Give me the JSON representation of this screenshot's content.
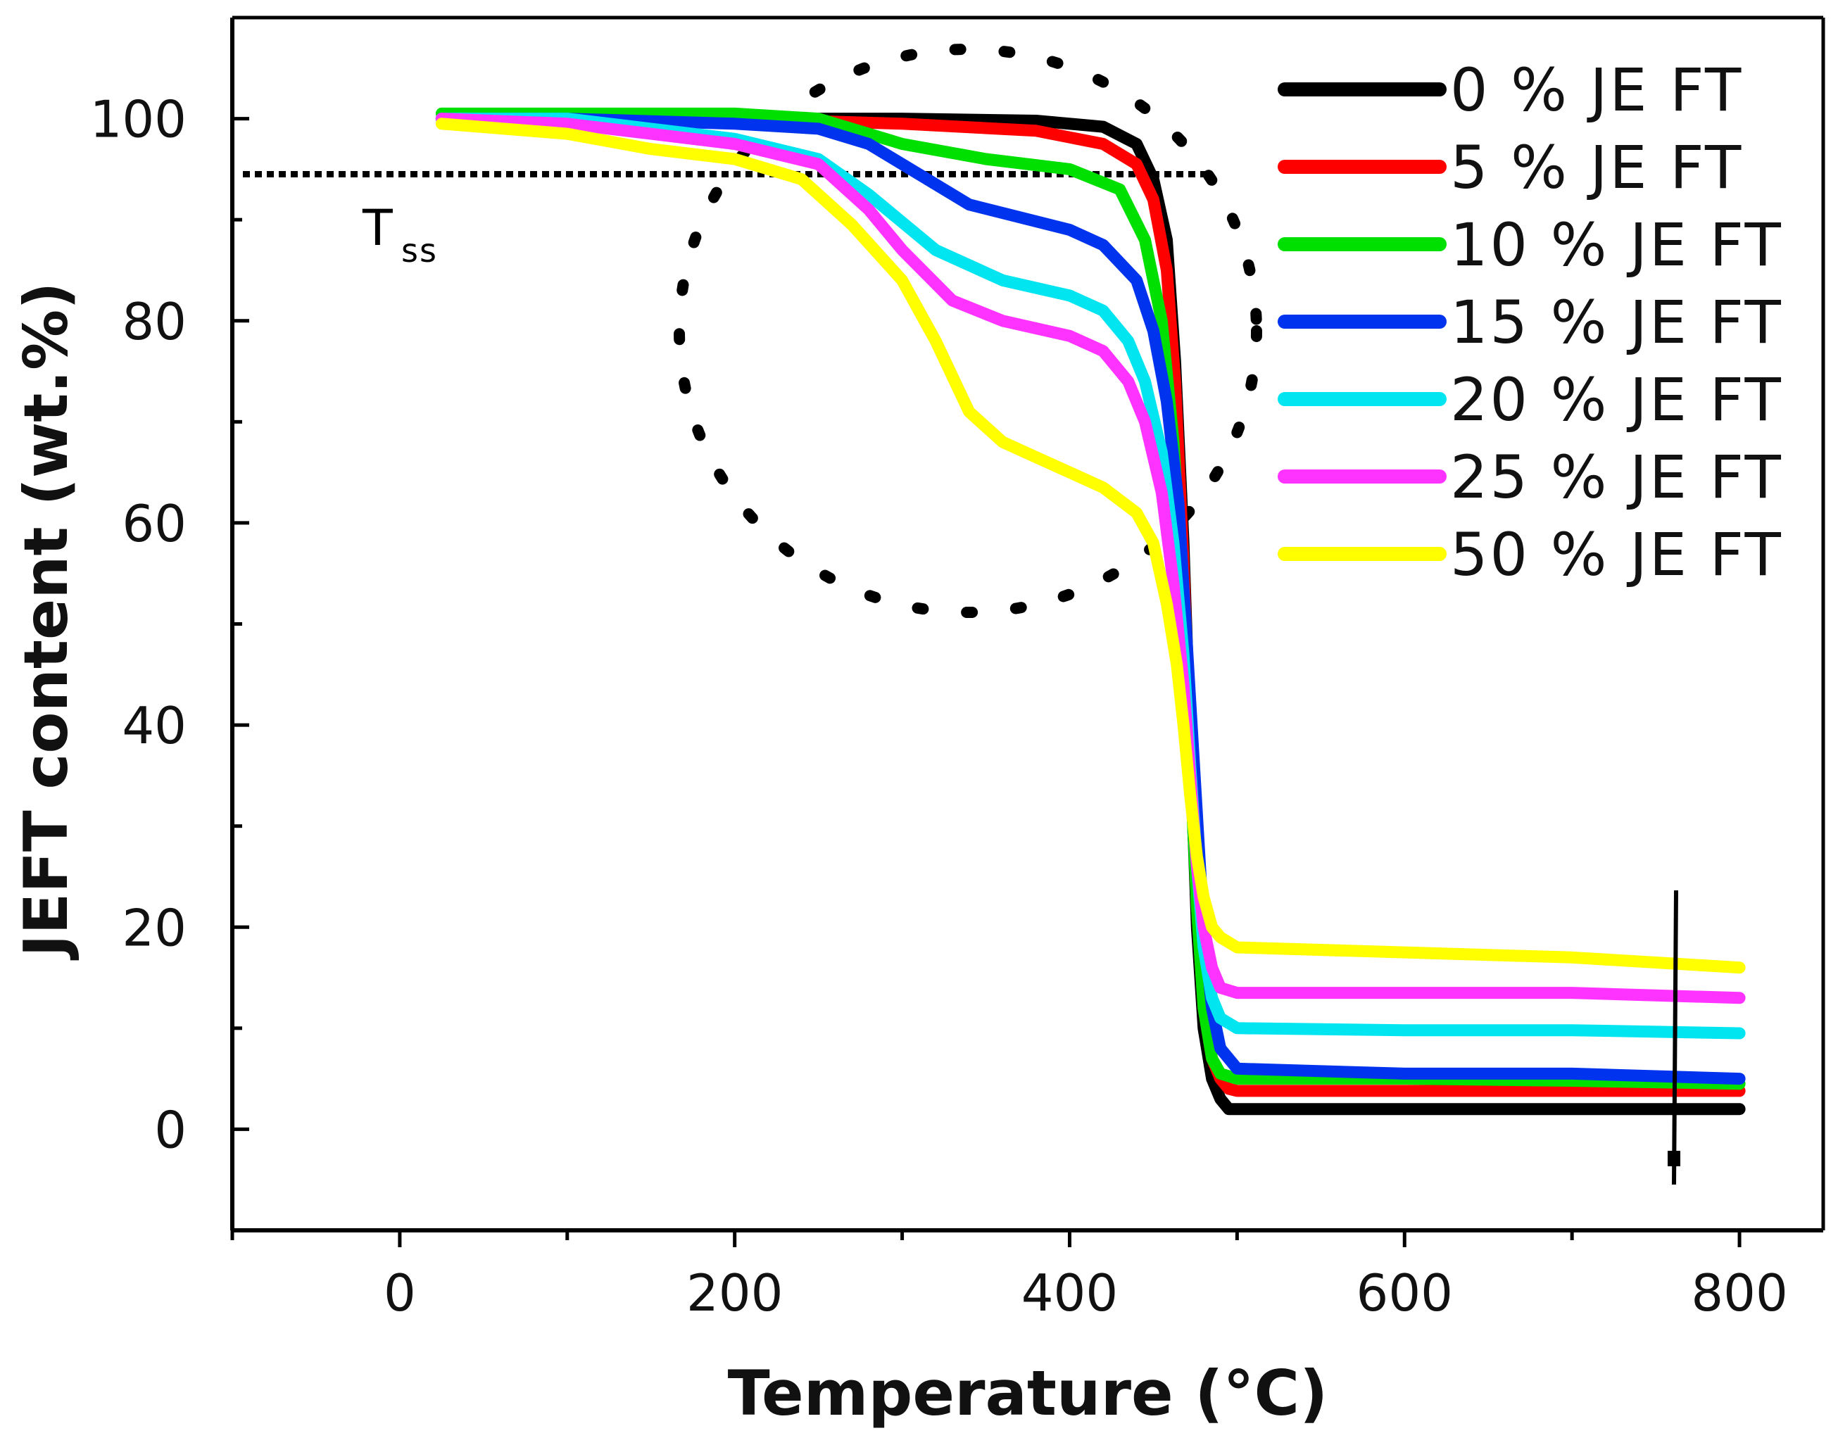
{
  "chart_data": {
    "type": "line",
    "title": "",
    "xlabel": "Temperature (°C)",
    "ylabel": "JEFT content (wt.%)",
    "xlim": [
      -100,
      850
    ],
    "ylim": [
      -10,
      110
    ],
    "xticks": [
      0,
      200,
      400,
      600,
      800
    ],
    "xtick_labels": [
      "0",
      "200",
      "400",
      "600",
      "800"
    ],
    "yticks": [
      0,
      20,
      40,
      60,
      80,
      100
    ],
    "ytick_labels": [
      "0",
      "20",
      "40",
      "60",
      "80",
      "100"
    ],
    "legend_position": "top-right",
    "annotations": {
      "tss_label": "T",
      "tss_subscript": "ss",
      "tss_level": 94.5
    },
    "series": [
      {
        "name": "0 % JE FT",
        "color": "#000000",
        "x": [
          25,
          100,
          200,
          300,
          380,
          420,
          440,
          450,
          458,
          463,
          468,
          472,
          476,
          480,
          485,
          490,
          495,
          500,
          600,
          700,
          800
        ],
        "y": [
          100,
          100,
          100,
          100,
          99.8,
          99.2,
          97.5,
          94,
          88,
          76,
          58,
          38,
          20,
          10,
          5,
          3,
          2,
          2,
          2,
          2,
          2
        ]
      },
      {
        "name": "5 % JE FT",
        "color": "#ff0000",
        "x": [
          25,
          100,
          200,
          300,
          380,
          420,
          440,
          450,
          458,
          463,
          468,
          472,
          476,
          480,
          485,
          490,
          495,
          500,
          600,
          700,
          800
        ],
        "y": [
          100,
          100,
          100,
          99.5,
          98.8,
          97.5,
          95.5,
          92,
          85,
          74,
          56,
          38,
          22,
          12,
          7,
          5,
          4,
          3.8,
          3.8,
          3.8,
          3.8
        ]
      },
      {
        "name": "10 % JE FT",
        "color": "#00e000",
        "x": [
          25,
          100,
          200,
          250,
          300,
          350,
          400,
          430,
          445,
          455,
          462,
          468,
          472,
          476,
          480,
          485,
          490,
          500,
          600,
          700,
          800
        ],
        "y": [
          100.5,
          100.5,
          100.5,
          100,
          97.5,
          96,
          95,
          93,
          88,
          80,
          68,
          52,
          36,
          22,
          12,
          7,
          5.5,
          5,
          5,
          4.8,
          4.5
        ]
      },
      {
        "name": "15 % JE FT",
        "color": "#0033ee",
        "x": [
          25,
          100,
          200,
          250,
          280,
          300,
          340,
          400,
          420,
          440,
          450,
          458,
          465,
          470,
          475,
          480,
          485,
          490,
          500,
          600,
          700,
          800
        ],
        "y": [
          100,
          100,
          99.5,
          99,
          97.5,
          95.5,
          91.5,
          89,
          87.5,
          84,
          79,
          72,
          62,
          48,
          34,
          20,
          12,
          8,
          6,
          5.5,
          5.5,
          5
        ]
      },
      {
        "name": "20 % JE FT",
        "color": "#00e5f0",
        "x": [
          25,
          100,
          150,
          200,
          250,
          280,
          320,
          360,
          400,
          420,
          435,
          445,
          455,
          462,
          468,
          472,
          476,
          480,
          485,
          490,
          500,
          600,
          700,
          800
        ],
        "y": [
          100,
          100,
          99,
          98,
          96,
          92.5,
          87,
          84,
          82.5,
          81,
          78,
          74,
          67,
          58,
          47,
          36,
          26,
          18,
          13,
          11,
          10,
          9.8,
          9.8,
          9.5
        ]
      },
      {
        "name": "25 % JE FT",
        "color": "#ff33ff",
        "x": [
          25,
          100,
          150,
          200,
          250,
          280,
          300,
          330,
          360,
          400,
          420,
          435,
          445,
          455,
          462,
          468,
          472,
          476,
          480,
          485,
          490,
          500,
          600,
          700,
          800
        ],
        "y": [
          100,
          99.5,
          98.5,
          97.5,
          95.5,
          91,
          87,
          82,
          80,
          78.5,
          77,
          74,
          70,
          63,
          54,
          44,
          35,
          26,
          20,
          16,
          14,
          13.5,
          13.5,
          13.5,
          13
        ]
      },
      {
        "name": "50 % JE FT",
        "color": "#ffff00",
        "x": [
          25,
          100,
          150,
          200,
          240,
          270,
          300,
          320,
          340,
          360,
          380,
          400,
          420,
          440,
          450,
          458,
          464,
          468,
          472,
          476,
          480,
          485,
          490,
          500,
          600,
          700,
          750,
          800
        ],
        "y": [
          99.5,
          98.5,
          97,
          96,
          94,
          89.5,
          84,
          78,
          71,
          68,
          66.5,
          65,
          63.5,
          61,
          58,
          52,
          46,
          40,
          33,
          27,
          23,
          20,
          19,
          18,
          17.5,
          17,
          16.5,
          16
        ]
      }
    ]
  }
}
